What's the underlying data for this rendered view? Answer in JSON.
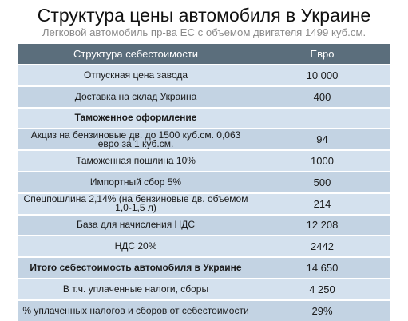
{
  "title": "Структура цены автомобиля в Украине",
  "subtitle": "Легковой автомобиль пр-ва ЕС с объемом двигателя 1499 куб.см.",
  "table": {
    "headers": [
      "Структура себестоимости",
      "Евро"
    ],
    "rows": [
      {
        "label": "Отпускная цена завода",
        "value": "10 000"
      },
      {
        "label": "Доставка на склад Украина",
        "value": "400"
      },
      {
        "label": "Таможенное оформление",
        "value": ""
      },
      {
        "label": "Акциз на бензиновые дв. до 1500 куб.см. 0,063 евро за 1 куб.см.",
        "value": "94"
      },
      {
        "label": "Таможенная пошлина 10%",
        "value": "1000"
      },
      {
        "label": "Импортный сбор 5%",
        "value": "500"
      },
      {
        "label": "Спецпошлина 2,14% (на бензиновые дв. объемом 1,0-1,5 л)",
        "value": "214"
      },
      {
        "label": "База для начисления НДС",
        "value": "12 208"
      },
      {
        "label": "НДС 20%",
        "value": "2442"
      },
      {
        "label": "Итого себестоимость автомобиля в Украине",
        "value": "14 650"
      },
      {
        "label": "В т.ч. уплаченные налоги, сборы",
        "value": "4 250"
      },
      {
        "label": "% уплаченных налогов и сборов от себестоимости",
        "value": "29%"
      }
    ]
  }
}
